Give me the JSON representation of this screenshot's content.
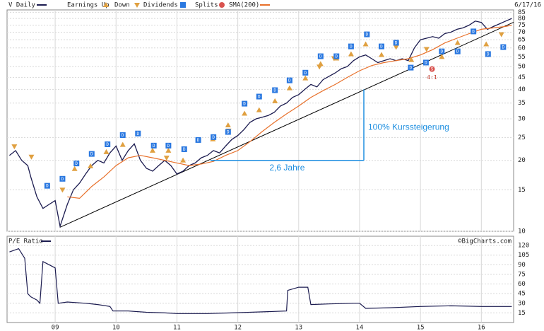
{
  "chart_data": [
    {
      "type": "line",
      "date": "6/17/16",
      "log_y": true,
      "grid": true,
      "xlim": [
        2008.21,
        2016.53
      ],
      "ylim": [
        10,
        87
      ],
      "yticks": [
        10,
        15,
        20,
        25,
        30,
        35,
        40,
        45,
        50,
        55,
        60,
        65,
        70,
        75,
        80,
        85
      ],
      "series": [
        {
          "name": "V Daily",
          "color": "#1c1c50",
          "x": [
            2008.25,
            2008.35,
            2008.45,
            2008.55,
            2008.6,
            2008.7,
            2008.8,
            2008.9,
            2009.0,
            2009.08,
            2009.2,
            2009.3,
            2009.4,
            2009.5,
            2009.6,
            2009.7,
            2009.8,
            2009.9,
            2010.0,
            2010.1,
            2010.2,
            2010.3,
            2010.4,
            2010.5,
            2010.6,
            2010.7,
            2010.8,
            2010.9,
            2011.0,
            2011.1,
            2011.2,
            2011.3,
            2011.4,
            2011.5,
            2011.6,
            2011.7,
            2011.8,
            2011.9,
            2012.0,
            2012.1,
            2012.2,
            2012.3,
            2012.4,
            2012.5,
            2012.6,
            2012.7,
            2012.8,
            2012.9,
            2013.0,
            2013.1,
            2013.2,
            2013.3,
            2013.4,
            2013.5,
            2013.6,
            2013.7,
            2013.8,
            2013.9,
            2014.0,
            2014.1,
            2014.2,
            2014.3,
            2014.4,
            2014.5,
            2014.6,
            2014.7,
            2014.8,
            2014.9,
            2015.0,
            2015.1,
            2015.2,
            2015.3,
            2015.4,
            2015.5,
            2015.6,
            2015.7,
            2015.8,
            2015.9,
            2016.0,
            2016.1,
            2016.2,
            2016.3,
            2016.4,
            2016.5
          ],
          "values": [
            21,
            22,
            20,
            19,
            17,
            14,
            12.5,
            13,
            13.5,
            10.5,
            13,
            15,
            16,
            17.5,
            19,
            20,
            19.5,
            21.5,
            23,
            20,
            22,
            23.5,
            20,
            18.5,
            18,
            19,
            20,
            19,
            17.5,
            18,
            19,
            19.5,
            20.5,
            21,
            22,
            21.5,
            23,
            24.5,
            25.5,
            27,
            29,
            30,
            30.5,
            31,
            32,
            34,
            35,
            37,
            38,
            40,
            42,
            41,
            44,
            45.5,
            47,
            49,
            50,
            53,
            55,
            56,
            54,
            52,
            53,
            54,
            53,
            54,
            53,
            60,
            65,
            66,
            67,
            66,
            69,
            70,
            72,
            73,
            75,
            78,
            77,
            72,
            74,
            76,
            78,
            80
          ]
        },
        {
          "name": "SMA(200)",
          "color": "#e8702a",
          "x": [
            2009.2,
            2009.4,
            2009.6,
            2009.8,
            2010.0,
            2010.2,
            2010.4,
            2010.6,
            2010.8,
            2011.0,
            2011.2,
            2011.4,
            2011.6,
            2011.8,
            2012.0,
            2012.2,
            2012.4,
            2012.6,
            2012.8,
            2013.0,
            2013.2,
            2013.4,
            2013.6,
            2013.8,
            2014.0,
            2014.2,
            2014.4,
            2014.6,
            2014.8,
            2015.0,
            2015.2,
            2015.4,
            2015.6,
            2015.8,
            2016.0,
            2016.2,
            2016.4,
            2016.5
          ],
          "values": [
            14,
            13.8,
            15.5,
            17,
            19,
            20.5,
            21,
            20.5,
            20,
            19.5,
            19,
            19.3,
            19.8,
            21,
            22,
            24,
            26.5,
            29,
            31.5,
            34,
            37,
            39.5,
            42,
            45,
            48,
            50.5,
            52,
            53,
            54,
            56,
            59,
            63,
            66,
            69,
            72,
            73,
            74,
            75
          ]
        }
      ],
      "markers": [
        {
          "name": "Earnings Up",
          "symbol": "triangle-up",
          "color": "#e0a040",
          "x": [
            2009.32,
            2009.58,
            2009.84,
            2010.11,
            2010.6,
            2010.86,
            2011.1,
            2011.59,
            2011.84,
            2012.11,
            2012.35,
            2012.61,
            2012.85,
            2013.11,
            2013.36,
            2013.62,
            2013.86,
            2014.1,
            2014.36,
            2014.85,
            2015.35,
            2015.61,
            2016.08
          ],
          "y": [
            18.4,
            18.9,
            21.7,
            23.3,
            22.0,
            22.0,
            20.0,
            24.6,
            28.2,
            31.6,
            32.7,
            35.7,
            40.5,
            44.6,
            51.3,
            54.2,
            56.5,
            62.2,
            56.1,
            53.4,
            55.0,
            63.1,
            62.2
          ]
        },
        {
          "name": "Down",
          "symbol": "triangle-down",
          "color": "#e0a040",
          "x": [
            2008.33,
            2008.61,
            2009.12,
            2010.83,
            2011.85,
            2013.34,
            2013.58,
            2014.6,
            2015.1,
            2016.33
          ],
          "y": [
            22.9,
            20.7,
            15.0,
            20.5,
            26.7,
            49.9,
            54.2,
            60.5,
            59.3,
            68.5
          ]
        },
        {
          "name": "Dividends",
          "symbol": "square",
          "color": "#2a78e0",
          "label": "D",
          "x": [
            2008.87,
            2009.12,
            2009.35,
            2009.6,
            2009.86,
            2010.11,
            2010.36,
            2010.62,
            2010.86,
            2011.12,
            2011.35,
            2011.6,
            2011.84,
            2012.11,
            2012.35,
            2012.61,
            2012.85,
            2013.11,
            2013.36,
            2013.62,
            2013.86,
            2014.12,
            2014.36,
            2014.6,
            2014.84,
            2015.09,
            2015.35,
            2015.61,
            2015.87,
            2016.11,
            2016.36
          ],
          "y": [
            15.6,
            16.7,
            19.4,
            21.3,
            23.4,
            25.6,
            26.0,
            23.1,
            23.1,
            22.3,
            24.4,
            25.1,
            26.4,
            34.8,
            37.3,
            39.7,
            43.7,
            47.1,
            55.3,
            55.3,
            60.9,
            68.5,
            60.9,
            63.1,
            49.5,
            52,
            58,
            58,
            70.5,
            56.5,
            60.5
          ]
        },
        {
          "name": "Splits",
          "symbol": "circle",
          "color": "#d9534f",
          "label": "S",
          "annotation": "4:1",
          "x": [
            2015.19
          ],
          "y": [
            48.8
          ]
        }
      ],
      "trendline": {
        "x": [
          2009.08,
          2016.53
        ],
        "y": [
          10.4,
          77.1
        ]
      },
      "annotations": [
        {
          "text": "2,6 Jahre",
          "x": [
            2011.55,
            2014.07
          ],
          "y": 20
        },
        {
          "text": "100% Kurssteigerung",
          "x": 2014.07,
          "y": [
            20,
            40
          ]
        }
      ]
    },
    {
      "type": "line",
      "title": "P/E Ratio",
      "source": "©BigCharts.com",
      "grid": true,
      "xlim": [
        2008.21,
        2016.53
      ],
      "ylim": [
        0,
        130
      ],
      "xticks": [
        {
          "value": 2009,
          "label": "09"
        },
        {
          "value": 2010,
          "label": "10"
        },
        {
          "value": 2011,
          "label": "11"
        },
        {
          "value": 2012,
          "label": "12"
        },
        {
          "value": 2013,
          "label": "13"
        },
        {
          "value": 2014,
          "label": "14"
        },
        {
          "value": 2015,
          "label": "15"
        },
        {
          "value": 2016,
          "label": "16"
        }
      ],
      "yticks": [
        15,
        30,
        45,
        60,
        75,
        90,
        105,
        120
      ],
      "color": "#1c1c50",
      "x": [
        2008.25,
        2008.4,
        2008.5,
        2008.55,
        2008.6,
        2008.7,
        2008.75,
        2008.8,
        2008.9,
        2009.0,
        2009.05,
        2009.2,
        2009.5,
        2009.7,
        2009.9,
        2009.95,
        2010.2,
        2010.5,
        2010.8,
        2011.0,
        2011.5,
        2011.9,
        2012.2,
        2012.5,
        2012.8,
        2012.82,
        2013.0,
        2013.15,
        2013.2,
        2013.5,
        2013.9,
        2014.0,
        2014.1,
        2014.5,
        2015.0,
        2015.5,
        2016.0,
        2016.5
      ],
      "values": [
        110,
        115,
        100,
        45,
        40,
        35,
        30,
        95,
        90,
        85,
        30,
        32,
        30,
        28,
        25,
        18,
        18,
        16,
        15,
        14,
        14,
        15,
        16,
        17,
        18,
        50,
        55,
        55,
        28,
        29,
        30,
        30,
        22,
        23,
        25,
        26,
        25,
        25
      ]
    }
  ]
}
